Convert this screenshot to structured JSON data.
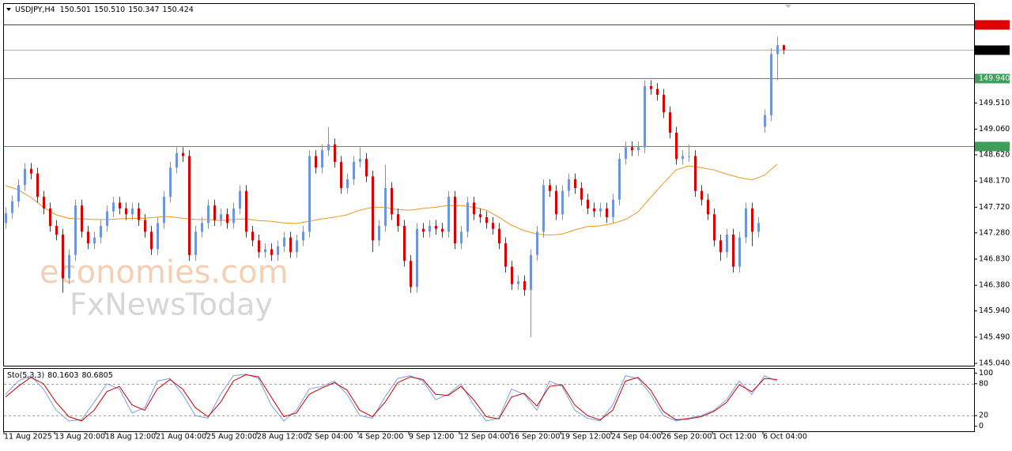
{
  "header": {
    "symbol": "USDJPY,H4",
    "ohlc": [
      150.501,
      {
        "value": 150.51,
        "label": "150.510"
      },
      150.347,
      150.424
    ]
  },
  "watermark": [
    "economies.com",
    "FxNewsToday"
  ],
  "chart_data": [
    {
      "type": "candlestick",
      "up_color": "#6f95dc",
      "down_color": "#d90000",
      "ylim": [
        145.0,
        151.21
      ],
      "yticks": [
        {
          "value": 149.51,
          "label": "149.510"
        },
        {
          "value": 149.06,
          "label": "149.060"
        },
        {
          "value": 148.62,
          "label": "148.620"
        },
        {
          "value": 148.17,
          "label": "148.170"
        },
        {
          "value": 147.72,
          "label": "147.720"
        },
        {
          "value": 147.28,
          "label": "147.280"
        },
        {
          "value": 146.83,
          "label": "146.830"
        },
        {
          "value": 146.38,
          "label": "146.380"
        },
        {
          "value": 145.94,
          "label": "145.940"
        },
        {
          "value": 145.49,
          "label": "145.490"
        },
        {
          "value": 145.04,
          "label": "145.040"
        }
      ],
      "price_lines": [
        {
          "value": 150.854,
          "color": "#e00000"
        },
        {
          "value": 150.424,
          "color": "#000000"
        },
        {
          "value": 149.94,
          "label": "149.940",
          "color": "#3f9f5a"
        },
        {
          "value": 148.772,
          "color": "#3f9f5a"
        }
      ],
      "categories": [
        "11 Aug 2025",
        null,
        null,
        null,
        null,
        null,
        null,
        null,
        "13 Aug 20:00",
        null,
        null,
        null,
        null,
        null,
        null,
        null,
        "18 Aug 12:00",
        null,
        null,
        null,
        null,
        null,
        null,
        null,
        "21 Aug 04:00",
        null,
        null,
        null,
        null,
        null,
        null,
        null,
        "25 Aug 20:00",
        null,
        null,
        null,
        null,
        null,
        null,
        null,
        "28 Aug 12:00",
        null,
        null,
        null,
        null,
        null,
        null,
        null,
        "2 Sep 04:00",
        null,
        null,
        null,
        null,
        null,
        null,
        null,
        "4 Sep 20:00",
        null,
        null,
        null,
        null,
        null,
        null,
        null,
        "9 Sep 12:00",
        null,
        null,
        null,
        null,
        null,
        null,
        null,
        "12 Sep 04:00",
        null,
        null,
        null,
        null,
        null,
        null,
        null,
        "16 Sep 20:00",
        null,
        null,
        null,
        null,
        null,
        null,
        null,
        "19 Sep 12:00",
        null,
        null,
        null,
        null,
        null,
        null,
        null,
        "24 Sep 04:00",
        null,
        null,
        null,
        null,
        null,
        null,
        null,
        "26 Sep 20:00",
        null,
        null,
        null,
        null,
        null,
        null,
        null,
        "1 Oct 12:00",
        null,
        null,
        null,
        null,
        null,
        null,
        null,
        "6 Oct 04:00",
        null,
        null,
        null
      ],
      "open": [
        147.45,
        147.62,
        147.82,
        148.1,
        148.38,
        148.3,
        147.9,
        147.7,
        147.4,
        147.25,
        146.5,
        146.9,
        147.75,
        147.3,
        147.1,
        147.2,
        147.4,
        147.65,
        147.8,
        147.7,
        147.6,
        147.7,
        147.5,
        147.3,
        147.0,
        147.45,
        147.9,
        148.4,
        148.65,
        148.6,
        146.9,
        147.3,
        147.45,
        147.75,
        147.5,
        147.6,
        147.45,
        147.7,
        148.0,
        147.3,
        147.15,
        146.95,
        147.0,
        146.9,
        147.05,
        147.2,
        146.95,
        147.15,
        147.3,
        148.6,
        148.4,
        148.7,
        148.8,
        148.5,
        148.05,
        148.2,
        148.5,
        148.55,
        148.25,
        147.15,
        147.4,
        148.05,
        147.6,
        147.4,
        146.8,
        146.35,
        147.35,
        147.3,
        147.4,
        147.35,
        147.3,
        147.9,
        147.1,
        147.3,
        147.8,
        147.6,
        147.55,
        147.45,
        147.35,
        147.1,
        146.7,
        146.4,
        146.45,
        146.3,
        146.9,
        147.3,
        148.1,
        148.0,
        147.6,
        148.0,
        148.2,
        148.05,
        147.85,
        147.7,
        147.65,
        147.7,
        147.55,
        147.85,
        148.55,
        148.75,
        148.7,
        148.75,
        149.8,
        149.75,
        149.65,
        149.35,
        149.0,
        148.55,
        148.6,
        148.6,
        148.0,
        147.85,
        147.6,
        147.15,
        146.95,
        147.25,
        146.7,
        147.2,
        147.7,
        147.3,
        149.1,
        149.3,
        150.35,
        150.501
      ],
      "high": [
        147.72,
        147.92,
        148.2,
        148.48,
        148.48,
        148.4,
        148.0,
        147.8,
        147.5,
        147.35,
        147.0,
        147.85,
        147.85,
        147.4,
        147.3,
        147.5,
        147.75,
        147.9,
        147.9,
        147.8,
        147.8,
        147.8,
        147.6,
        147.4,
        147.55,
        148.0,
        148.5,
        148.75,
        148.75,
        148.7,
        147.4,
        147.55,
        147.85,
        147.85,
        147.7,
        147.7,
        147.8,
        148.1,
        148.1,
        147.4,
        147.25,
        147.1,
        147.1,
        147.15,
        147.3,
        147.3,
        147.25,
        147.4,
        148.7,
        148.7,
        148.8,
        149.1,
        148.9,
        148.6,
        148.3,
        148.6,
        148.75,
        148.65,
        148.35,
        147.5,
        148.45,
        148.15,
        147.7,
        147.5,
        146.9,
        147.45,
        147.45,
        147.5,
        147.5,
        147.45,
        148.0,
        148.0,
        147.4,
        147.9,
        147.9,
        147.7,
        147.65,
        147.55,
        147.45,
        147.2,
        146.8,
        146.55,
        146.55,
        147.0,
        147.4,
        148.2,
        148.2,
        148.1,
        148.1,
        148.3,
        148.3,
        148.15,
        147.95,
        147.8,
        147.8,
        147.8,
        147.95,
        148.65,
        148.85,
        148.85,
        148.85,
        149.9,
        149.9,
        149.85,
        149.75,
        149.45,
        149.1,
        148.7,
        148.8,
        148.7,
        148.1,
        147.95,
        147.7,
        147.25,
        147.35,
        147.35,
        147.3,
        147.8,
        147.8,
        147.55,
        149.4,
        150.45,
        150.65,
        150.51
      ],
      "low": [
        147.35,
        147.52,
        147.72,
        148.0,
        148.2,
        147.8,
        147.6,
        147.3,
        147.15,
        146.25,
        146.4,
        146.8,
        147.2,
        147.0,
        147.0,
        147.1,
        147.3,
        147.55,
        147.6,
        147.5,
        147.5,
        147.4,
        147.2,
        146.9,
        146.9,
        147.35,
        147.8,
        148.3,
        148.5,
        146.8,
        146.8,
        147.2,
        147.35,
        147.4,
        147.4,
        147.35,
        147.35,
        147.6,
        147.2,
        147.05,
        146.85,
        146.85,
        146.8,
        146.8,
        146.95,
        146.85,
        146.85,
        147.05,
        147.2,
        148.3,
        148.3,
        148.6,
        148.4,
        147.95,
        147.95,
        148.1,
        148.4,
        148.15,
        146.95,
        147.05,
        147.3,
        147.5,
        147.3,
        146.7,
        146.25,
        146.25,
        147.2,
        147.2,
        147.25,
        147.2,
        147.2,
        147.0,
        147.0,
        147.2,
        147.5,
        147.45,
        147.35,
        147.25,
        147.0,
        146.6,
        146.3,
        146.3,
        146.2,
        145.49,
        146.8,
        147.2,
        147.9,
        147.5,
        147.5,
        147.9,
        147.95,
        147.75,
        147.6,
        147.55,
        147.55,
        147.45,
        147.45,
        147.75,
        148.45,
        148.6,
        148.6,
        148.65,
        149.65,
        149.55,
        149.25,
        148.9,
        148.45,
        148.45,
        148.5,
        147.9,
        147.75,
        147.5,
        147.05,
        146.8,
        146.85,
        146.6,
        146.6,
        147.1,
        147.05,
        147.2,
        149.0,
        149.2,
        149.9,
        150.347
      ],
      "close": [
        147.62,
        147.82,
        148.1,
        148.38,
        148.3,
        147.9,
        147.7,
        147.4,
        147.25,
        146.5,
        146.9,
        147.75,
        147.3,
        147.1,
        147.2,
        147.4,
        147.65,
        147.8,
        147.7,
        147.6,
        147.7,
        147.5,
        147.3,
        147.0,
        147.45,
        147.9,
        148.4,
        148.65,
        148.6,
        146.9,
        147.3,
        147.45,
        147.75,
        147.5,
        147.6,
        147.45,
        147.7,
        148.0,
        147.3,
        147.15,
        146.95,
        147.0,
        146.9,
        147.05,
        147.2,
        146.95,
        147.15,
        147.3,
        148.6,
        148.4,
        148.7,
        148.8,
        148.5,
        148.05,
        148.2,
        148.5,
        148.55,
        148.25,
        147.15,
        147.4,
        148.05,
        147.6,
        147.4,
        146.8,
        146.35,
        147.35,
        147.3,
        147.4,
        147.35,
        147.3,
        147.9,
        147.1,
        147.3,
        147.8,
        147.6,
        147.55,
        147.45,
        147.35,
        147.1,
        146.7,
        146.4,
        146.45,
        146.3,
        146.9,
        147.3,
        148.1,
        148.0,
        147.6,
        148.0,
        148.2,
        148.05,
        147.85,
        147.7,
        147.65,
        147.7,
        147.55,
        147.85,
        148.55,
        148.75,
        148.7,
        148.75,
        149.8,
        149.75,
        149.65,
        149.35,
        149.0,
        148.55,
        148.6,
        148.6,
        148.0,
        147.85,
        147.6,
        147.15,
        146.95,
        147.25,
        146.7,
        147.2,
        147.7,
        147.3,
        147.45,
        149.3,
        150.35,
        150.501,
        150.424
      ],
      "ma": {
        "color": "#f0961e",
        "values": [
          148.09,
          148.02,
          147.89,
          147.72,
          147.59,
          147.53,
          147.52,
          147.51,
          147.51,
          147.52,
          147.53,
          147.53,
          147.55,
          147.56,
          147.53,
          147.51,
          147.51,
          147.49,
          147.51,
          147.52,
          147.49,
          147.48,
          147.45,
          147.44,
          147.48,
          147.52,
          147.55,
          147.59,
          147.67,
          147.72,
          147.72,
          147.68,
          147.67,
          147.7,
          147.72,
          147.75,
          147.75,
          147.72,
          147.67,
          147.55,
          147.41,
          147.32,
          147.26,
          147.24,
          147.26,
          147.33,
          147.39,
          147.4,
          147.44,
          147.51,
          147.64,
          147.89,
          148.13,
          148.36,
          148.43,
          148.4,
          148.36,
          148.29,
          148.23,
          148.19,
          148.27,
          148.46
        ]
      }
    },
    {
      "type": "line",
      "title": "Sto(5,3,3)",
      "readings": [
        80.1603,
        80.6805
      ],
      "ylim": [
        -8,
        108
      ],
      "yticks": [
        0,
        20,
        80,
        100
      ],
      "levels": [
        20,
        80
      ],
      "series": [
        {
          "color": "#7ba0e0",
          "values": [
            60,
            85,
            95,
            70,
            30,
            10,
            12,
            45,
            80,
            70,
            25,
            35,
            85,
            90,
            60,
            20,
            15,
            60,
            95,
            98,
            90,
            40,
            10,
            30,
            70,
            75,
            85,
            60,
            20,
            15,
            55,
            90,
            95,
            85,
            50,
            60,
            80,
            40,
            10,
            15,
            70,
            60,
            30,
            85,
            75,
            30,
            15,
            10,
            40,
            95,
            90,
            60,
            20,
            10,
            15,
            20,
            30,
            50,
            85,
            60,
            95,
            85
          ]
        },
        {
          "color": "#c80000",
          "values": [
            55,
            75,
            92,
            80,
            45,
            18,
            10,
            30,
            65,
            75,
            40,
            30,
            70,
            88,
            70,
            35,
            18,
            45,
            85,
            97,
            93,
            55,
            18,
            25,
            60,
            72,
            82,
            68,
            30,
            18,
            45,
            82,
            93,
            88,
            60,
            58,
            75,
            50,
            18,
            14,
            55,
            62,
            38,
            75,
            78,
            40,
            20,
            12,
            30,
            85,
            92,
            68,
            28,
            12,
            14,
            18,
            28,
            45,
            78,
            65,
            90,
            88
          ]
        }
      ]
    }
  ]
}
